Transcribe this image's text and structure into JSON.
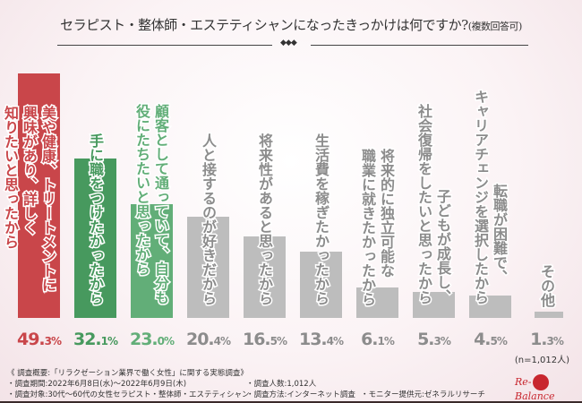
{
  "chart_data": {
    "type": "bar",
    "title": "セラピスト・整体師・エステティシャンになったきっかけは何ですか?",
    "subtitle": "(複数回答可)",
    "categories": [
      [
        "美や健康、トリートメントに",
        "興味があり、詳しく",
        "知りたいと思ったから"
      ],
      [
        "手に職をつけたかったから"
      ],
      [
        "顧客として通っていて、自分も",
        "役にたちたいと思ったから"
      ],
      [
        "人と接するのが好きだから"
      ],
      [
        "将来性があると思ったから"
      ],
      [
        "生活費を稼ぎたかったから"
      ],
      [
        "将来的に独立可能な",
        "職業に就きたかったから"
      ],
      [
        "子どもが成長し、",
        "社会復帰をしたいと思ったから"
      ],
      [
        "転職が困難で、",
        "キャリアチェンジを選択したから"
      ],
      [
        "その他"
      ]
    ],
    "values": [
      49.3,
      32.1,
      23.0,
      20.4,
      16.5,
      13.4,
      6.1,
      5.3,
      4.5,
      1.3
    ],
    "value_int": [
      "49.",
      "32.",
      "23.",
      "20.",
      "16.",
      "13.",
      "6.",
      "5.",
      "4.",
      "1."
    ],
    "value_dec": [
      "3%",
      "1%",
      "0%",
      "4%",
      "5%",
      "4%",
      "1%",
      "3%",
      "5%",
      "3%"
    ],
    "colors": [
      "#c9464a",
      "#47995e",
      "#62ae78",
      "#bdbdbd",
      "#bdbdbd",
      "#bdbdbd",
      "#bdbdbd",
      "#bdbdbd",
      "#bdbdbd",
      "#bdbdbd"
    ],
    "text_colors": [
      "#c9464a",
      "#47995e",
      "#62ae78",
      "#8c8c8c",
      "#8c8c8c",
      "#8c8c8c",
      "#8c8c8c",
      "#8c8c8c",
      "#8c8c8c",
      "#8c8c8c"
    ],
    "ylim": [
      0,
      50
    ],
    "n_label": "(n=1,012人)"
  },
  "footer": {
    "summary": "《 調査概要:「リラクゼーション業界で働く女性」に関する実態調査》",
    "period": "・調査期間:2022年6月8日(水)〜2022年6月9日(木)",
    "target": "・調査対象:30代〜60代の女性セラピスト・整体師・エステティシャン",
    "count": "・調査人数:1,012人",
    "method": "・調査方法:インターネット調査",
    "provider": "・モニター提供元:ゼネラルリサーチ"
  },
  "logo": {
    "left": "Re-",
    "mid": "Body",
    "right": "Balance"
  },
  "decor": "◆◆◆"
}
